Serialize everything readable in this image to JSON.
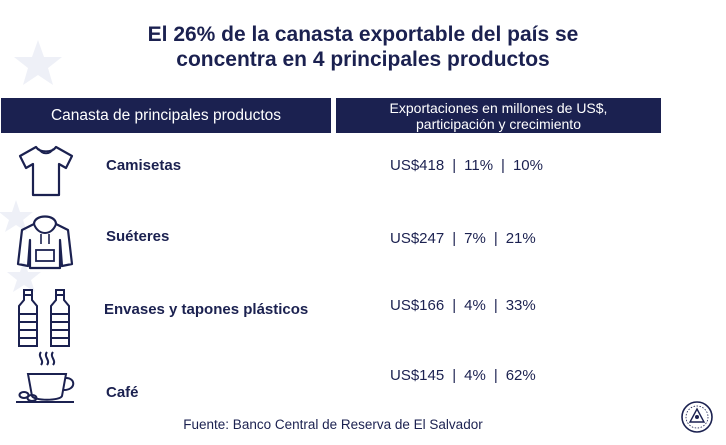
{
  "title": {
    "line1": "El 26% de la canasta exportable del país se",
    "line2": "concentra en 4 principales productos"
  },
  "header": {
    "left": "Canasta de principales productos",
    "right_line1": "Exportaciones en millones de US$,",
    "right_line2": "participación y crecimiento"
  },
  "rows": [
    {
      "icon": "tshirt-icon",
      "product": "Camisetas",
      "value": "US$418",
      "share": "11%",
      "growth": "10%"
    },
    {
      "icon": "hoodie-icon",
      "product": "Suéteres",
      "value": "US$247",
      "share": "7%",
      "growth": "21%"
    },
    {
      "icon": "bottles-icon",
      "product": "Envases y tapones plásticos",
      "value": "US$166",
      "share": "4%",
      "growth": "33%"
    },
    {
      "icon": "coffee-cup-icon",
      "product": "Café",
      "value": "US$145",
      "share": "4%",
      "growth": "62%"
    }
  ],
  "separator": "|",
  "source": "Fuente: Banco Central de Reserva de El Salvador",
  "colors": {
    "navy": "#1b2150",
    "background": "#ffffff"
  },
  "seal_icon": "el-salvador-seal-icon"
}
